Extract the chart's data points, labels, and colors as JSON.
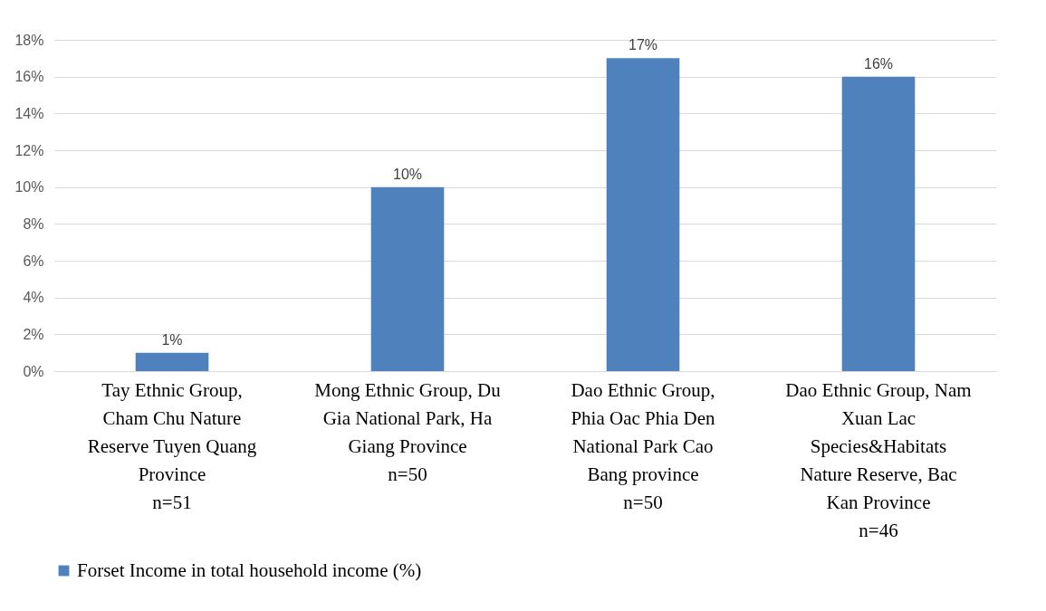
{
  "chart_data": {
    "type": "bar",
    "categories": [
      "Tay Ethnic Group, Cham Chu Nature Reserve Tuyen Quang Province\nn=51",
      "Mong Ethnic Group, Du Gia National Park, Ha Giang Province\nn=50",
      "Dao Ethnic Group, Phia Oac Phia Den National Park Cao Bang province\nn=50",
      "Dao Ethnic Group, Nam Xuan Lac Species&Habitats Nature Reserve, Bac Kan Province\nn=46"
    ],
    "series": [
      {
        "name": "Forset Income in total household income (%)",
        "color": "#4f81bd",
        "values": [
          1,
          10,
          17,
          16
        ],
        "value_labels": [
          "1%",
          "10%",
          "17%",
          "16%"
        ]
      }
    ],
    "ylim": [
      0,
      18
    ],
    "yticks": [
      {
        "value": 0,
        "label": "0%"
      },
      {
        "value": 2,
        "label": "2%"
      },
      {
        "value": 4,
        "label": "4%"
      },
      {
        "value": 6,
        "label": "6%"
      },
      {
        "value": 8,
        "label": "8%"
      },
      {
        "value": 10,
        "label": "10%"
      },
      {
        "value": 12,
        "label": "12%"
      },
      {
        "value": 14,
        "label": "14%"
      },
      {
        "value": 16,
        "label": "16%"
      },
      {
        "value": 18,
        "label": "18%"
      }
    ],
    "grid": "y",
    "legend": "bottom"
  }
}
